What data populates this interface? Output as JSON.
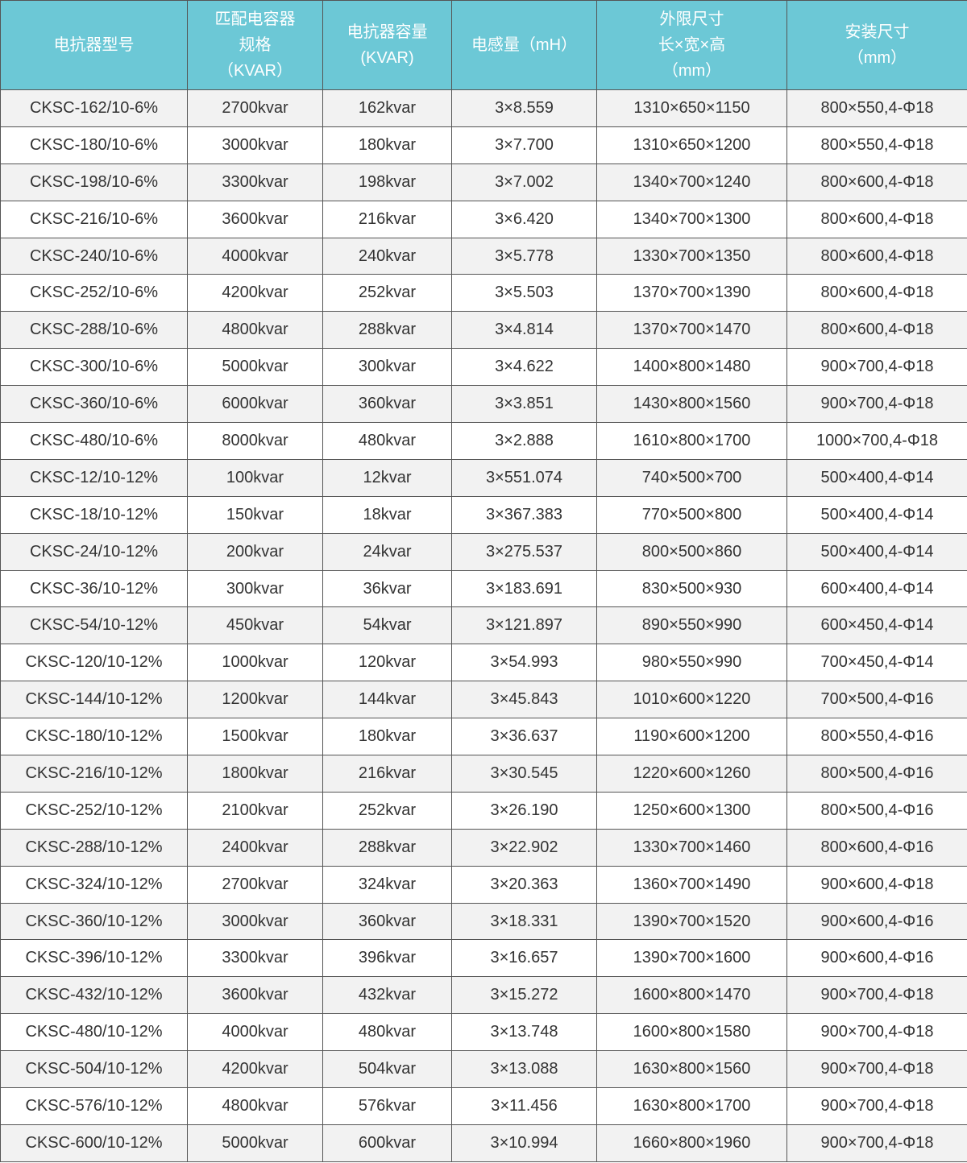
{
  "header": {
    "columns": [
      {
        "lines": [
          "电抗器型号"
        ]
      },
      {
        "lines": [
          "匹配电容器",
          "规格",
          "（KVAR）"
        ]
      },
      {
        "lines": [
          "电抗器容量",
          "(KVAR)"
        ]
      },
      {
        "lines": [
          "电感量（mH）"
        ]
      },
      {
        "lines": [
          "外限尺寸",
          "长×宽×高",
          "（mm）"
        ]
      },
      {
        "lines": [
          "安装尺寸",
          "（mm）"
        ]
      }
    ]
  },
  "colors": {
    "header_bg": "#6cc8d6",
    "row_alt_bg": "#f2f2f2",
    "border": "#555555"
  },
  "rows": [
    [
      "CKSC-162/10-6%",
      "2700kvar",
      "162kvar",
      "3×8.559",
      "1310×650×1150",
      "800×550,4-Φ18"
    ],
    [
      "CKSC-180/10-6%",
      "3000kvar",
      "180kvar",
      "3×7.700",
      "1310×650×1200",
      "800×550,4-Φ18"
    ],
    [
      "CKSC-198/10-6%",
      "3300kvar",
      "198kvar",
      "3×7.002",
      "1340×700×1240",
      "800×600,4-Φ18"
    ],
    [
      "CKSC-216/10-6%",
      "3600kvar",
      "216kvar",
      "3×6.420",
      "1340×700×1300",
      "800×600,4-Φ18"
    ],
    [
      "CKSC-240/10-6%",
      "4000kvar",
      "240kvar",
      "3×5.778",
      "1330×700×1350",
      "800×600,4-Φ18"
    ],
    [
      "CKSC-252/10-6%",
      "4200kvar",
      "252kvar",
      "3×5.503",
      "1370×700×1390",
      "800×600,4-Φ18"
    ],
    [
      "CKSC-288/10-6%",
      "4800kvar",
      "288kvar",
      "3×4.814",
      "1370×700×1470",
      "800×600,4-Φ18"
    ],
    [
      "CKSC-300/10-6%",
      "5000kvar",
      "300kvar",
      "3×4.622",
      "1400×800×1480",
      "900×700,4-Φ18"
    ],
    [
      "CKSC-360/10-6%",
      "6000kvar",
      "360kvar",
      "3×3.851",
      "1430×800×1560",
      "900×700,4-Φ18"
    ],
    [
      "CKSC-480/10-6%",
      "8000kvar",
      "480kvar",
      "3×2.888",
      "1610×800×1700",
      "1000×700,4-Φ18"
    ],
    [
      "CKSC-12/10-12%",
      "100kvar",
      "12kvar",
      "3×551.074",
      "740×500×700",
      "500×400,4-Φ14"
    ],
    [
      "CKSC-18/10-12%",
      "150kvar",
      "18kvar",
      "3×367.383",
      "770×500×800",
      "500×400,4-Φ14"
    ],
    [
      "CKSC-24/10-12%",
      "200kvar",
      "24kvar",
      "3×275.537",
      "800×500×860",
      "500×400,4-Φ14"
    ],
    [
      "CKSC-36/10-12%",
      "300kvar",
      "36kvar",
      "3×183.691",
      "830×500×930",
      "600×400,4-Φ14"
    ],
    [
      "CKSC-54/10-12%",
      "450kvar",
      "54kvar",
      "3×121.897",
      "890×550×990",
      "600×450,4-Φ14"
    ],
    [
      "CKSC-120/10-12%",
      "1000kvar",
      "120kvar",
      "3×54.993",
      "980×550×990",
      "700×450,4-Φ14"
    ],
    [
      "CKSC-144/10-12%",
      "1200kvar",
      "144kvar",
      "3×45.843",
      "1010×600×1220",
      "700×500,4-Φ16"
    ],
    [
      "CKSC-180/10-12%",
      "1500kvar",
      "180kvar",
      "3×36.637",
      "1190×600×1200",
      "800×550,4-Φ16"
    ],
    [
      "CKSC-216/10-12%",
      "1800kvar",
      "216kvar",
      "3×30.545",
      "1220×600×1260",
      "800×500,4-Φ16"
    ],
    [
      "CKSC-252/10-12%",
      "2100kvar",
      "252kvar",
      "3×26.190",
      "1250×600×1300",
      "800×500,4-Φ16"
    ],
    [
      "CKSC-288/10-12%",
      "2400kvar",
      "288kvar",
      "3×22.902",
      "1330×700×1460",
      "800×600,4-Φ16"
    ],
    [
      "CKSC-324/10-12%",
      "2700kvar",
      "324kvar",
      "3×20.363",
      "1360×700×1490",
      "900×600,4-Φ18"
    ],
    [
      "CKSC-360/10-12%",
      "3000kvar",
      "360kvar",
      "3×18.331",
      "1390×700×1520",
      "900×600,4-Φ16"
    ],
    [
      "CKSC-396/10-12%",
      "3300kvar",
      "396kvar",
      "3×16.657",
      "1390×700×1600",
      "900×600,4-Φ16"
    ],
    [
      "CKSC-432/10-12%",
      "3600kvar",
      "432kvar",
      "3×15.272",
      "1600×800×1470",
      "900×700,4-Φ18"
    ],
    [
      "CKSC-480/10-12%",
      "4000kvar",
      "480kvar",
      "3×13.748",
      "1600×800×1580",
      "900×700,4-Φ18"
    ],
    [
      "CKSC-504/10-12%",
      "4200kvar",
      "504kvar",
      "3×13.088",
      "1630×800×1560",
      "900×700,4-Φ18"
    ],
    [
      "CKSC-576/10-12%",
      "4800kvar",
      "576kvar",
      "3×11.456",
      "1630×800×1700",
      "900×700,4-Φ18"
    ],
    [
      "CKSC-600/10-12%",
      "5000kvar",
      "600kvar",
      "3×10.994",
      "1660×800×1960",
      "900×700,4-Φ18"
    ]
  ]
}
